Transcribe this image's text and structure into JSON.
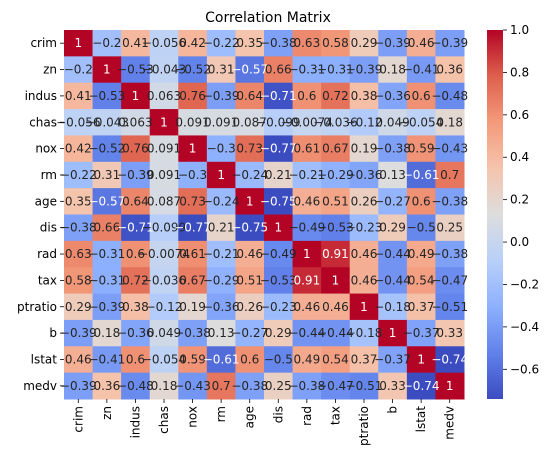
{
  "chart_data": {
    "type": "heatmap",
    "title": "Correlation Matrix",
    "xlabel": "",
    "ylabel": "",
    "colormap": "coolwarm",
    "grid": false,
    "legend": "colorbar-right",
    "colorbar": {
      "vmin": -0.74,
      "vmax": 1.0,
      "ticks": [
        -0.6,
        -0.4,
        -0.2,
        0.0,
        0.2,
        0.4,
        0.6,
        0.8,
        1.0
      ],
      "tick_labels": [
        "−0.6",
        "−0.4",
        "−0.2",
        "0.0",
        "0.2",
        "0.4",
        "0.6",
        "0.8",
        "1.0"
      ]
    },
    "rows": [
      "crim",
      "zn",
      "indus",
      "chas",
      "nox",
      "rm",
      "age",
      "dis",
      "rad",
      "tax",
      "ptratio",
      "b",
      "lstat",
      "medv"
    ],
    "columns": [
      "crim",
      "zn",
      "indus",
      "chas",
      "nox",
      "rm",
      "age",
      "dis",
      "rad",
      "tax",
      "ptratio",
      "b",
      "lstat",
      "medv"
    ],
    "values": [
      [
        1,
        -0.2,
        0.41,
        -0.056,
        0.42,
        -0.22,
        0.35,
        -0.38,
        0.63,
        0.58,
        0.29,
        -0.39,
        0.46,
        -0.39
      ],
      [
        -0.2,
        1,
        -0.53,
        -0.043,
        -0.52,
        0.31,
        -0.57,
        0.66,
        -0.31,
        -0.31,
        -0.39,
        0.18,
        -0.41,
        0.36
      ],
      [
        0.41,
        -0.53,
        1,
        0.063,
        0.76,
        -0.39,
        0.64,
        -0.71,
        0.6,
        0.72,
        0.38,
        -0.36,
        0.6,
        -0.48
      ],
      [
        -0.056,
        -0.043,
        0.063,
        1,
        0.091,
        0.091,
        0.087,
        -0.099,
        -0.0074,
        -0.036,
        -0.12,
        0.049,
        -0.054,
        0.18
      ],
      [
        0.42,
        -0.52,
        0.76,
        0.091,
        1,
        -0.3,
        0.73,
        -0.77,
        0.61,
        0.67,
        0.19,
        -0.38,
        0.59,
        -0.43
      ],
      [
        -0.22,
        0.31,
        -0.39,
        0.091,
        -0.3,
        1,
        -0.24,
        0.21,
        -0.21,
        -0.29,
        -0.36,
        0.13,
        -0.61,
        0.7
      ],
      [
        0.35,
        -0.57,
        0.64,
        0.087,
        0.73,
        -0.24,
        1,
        -0.75,
        0.46,
        0.51,
        0.26,
        -0.27,
        0.6,
        -0.38
      ],
      [
        -0.38,
        0.66,
        -0.71,
        -0.099,
        -0.77,
        0.21,
        -0.75,
        1,
        -0.49,
        -0.53,
        -0.23,
        0.29,
        -0.5,
        0.25
      ],
      [
        0.63,
        -0.31,
        0.6,
        -0.0074,
        0.61,
        -0.21,
        0.46,
        -0.49,
        1,
        0.91,
        0.46,
        -0.44,
        0.49,
        -0.38
      ],
      [
        0.58,
        -0.31,
        0.72,
        -0.036,
        0.67,
        -0.29,
        0.51,
        -0.53,
        0.91,
        1,
        0.46,
        -0.44,
        0.54,
        -0.47
      ],
      [
        0.29,
        -0.39,
        0.38,
        -0.12,
        0.19,
        -0.36,
        0.26,
        -0.23,
        0.46,
        0.46,
        1,
        -0.18,
        0.37,
        -0.51
      ],
      [
        -0.39,
        0.18,
        -0.36,
        0.049,
        -0.38,
        0.13,
        -0.27,
        0.29,
        -0.44,
        -0.44,
        -0.18,
        1,
        -0.37,
        0.33
      ],
      [
        0.46,
        -0.41,
        0.6,
        -0.054,
        0.59,
        -0.61,
        0.6,
        -0.5,
        0.49,
        0.54,
        0.37,
        -0.37,
        1,
        -0.74
      ],
      [
        -0.39,
        0.36,
        -0.48,
        0.18,
        -0.43,
        0.7,
        -0.38,
        0.25,
        -0.38,
        -0.47,
        -0.51,
        0.33,
        -0.74,
        1
      ]
    ]
  }
}
